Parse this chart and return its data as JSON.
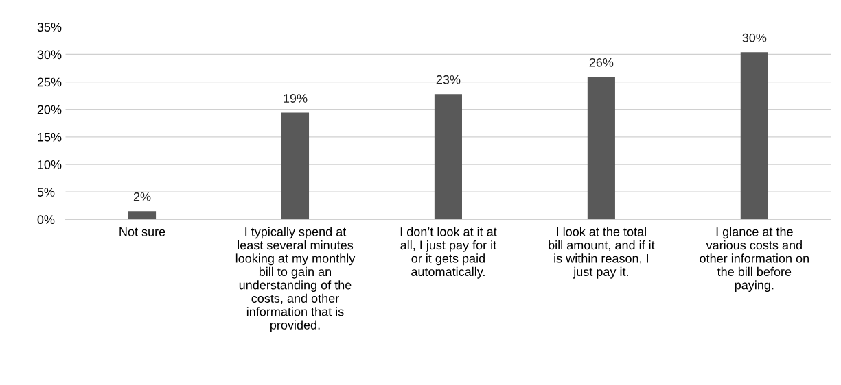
{
  "chart_data": {
    "type": "bar",
    "categories": [
      "Not sure",
      "I typically spend at least several minutes looking at my monthly bill to gain an understanding of the costs, and other information that is provided.",
      "I don’t look at it at all, I just pay for it or it gets paid automatically.",
      "I look at the total bill amount, and if it is within reason, I just pay it.",
      "I glance at the various costs and other information on the bill before paying."
    ],
    "values": [
      1.5,
      19.4,
      22.8,
      25.9,
      30.4
    ],
    "value_labels": [
      "2%",
      "19%",
      "23%",
      "26%",
      "30%"
    ],
    "color": "#595959",
    "ylim": [
      0,
      35
    ],
    "yticks": [
      {
        "value": 0,
        "label": "0%"
      },
      {
        "value": 5,
        "label": "5%"
      },
      {
        "value": 10,
        "label": "10%"
      },
      {
        "value": 15,
        "label": "15%"
      },
      {
        "value": 20,
        "label": "20%"
      },
      {
        "value": 25,
        "label": "25%"
      },
      {
        "value": 30,
        "label": "30%"
      },
      {
        "value": 35,
        "label": "35%"
      }
    ],
    "grid": "y"
  }
}
